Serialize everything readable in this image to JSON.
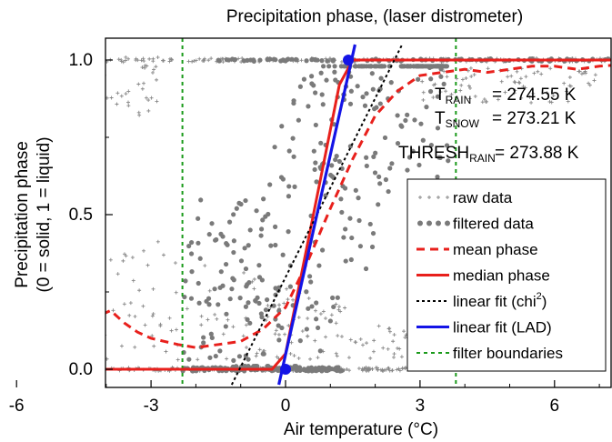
{
  "chart_data": {
    "type": "scatter",
    "title": "Precipitation phase, (laser distrometer)",
    "xlabel": "Air temperature (°C)",
    "ylabel_line1": "Precipitation phase",
    "ylabel_line2": "(0 = solid, 1 = liquid)",
    "xlim": [
      -8,
      14
    ],
    "ylim": [
      -0.02,
      1.05
    ],
    "x_ticks": [
      -6,
      -3,
      0,
      3,
      6
    ],
    "x_tick_labels": [
      "-6",
      "-3",
      "0",
      "3",
      "6"
    ],
    "y_ticks": [
      0.0,
      0.5,
      1.0
    ],
    "y_tick_labels": [
      "0.0",
      "0.5",
      "1.0"
    ],
    "annotations": {
      "t_rain": {
        "main": "T",
        "sub": "RAIN",
        "value": "= 274.55 K"
      },
      "t_snow": {
        "main": "T",
        "sub": "SNOW",
        "value": "= 273.21 K"
      },
      "thresh": {
        "main": "THRESH",
        "sub": "RAIN",
        "value": "= 273.88 K"
      }
    },
    "legend": {
      "placement": "lower-right",
      "entries": [
        {
          "key": "raw",
          "label": "raw data",
          "sup": ""
        },
        {
          "key": "filtered",
          "label": "filtered data",
          "sup": ""
        },
        {
          "key": "mean",
          "label": "mean phase",
          "sup": ""
        },
        {
          "key": "median",
          "label": "median phase",
          "sup": ""
        },
        {
          "key": "chi2",
          "label": "linear fit (chi",
          "sup": "2",
          "suffix": ")"
        },
        {
          "key": "lad",
          "label": "linear fit (LAD)",
          "sup": ""
        },
        {
          "key": "bounds",
          "label": "filter boundaries",
          "sup": ""
        }
      ]
    },
    "filter_boundaries": [
      -2.3,
      3.8
    ],
    "lad_fit": {
      "x": [
        -0.15,
        1.55
      ],
      "y": [
        -0.05,
        1.05
      ]
    },
    "chi2_fit": {
      "x": [
        -1.2,
        2.6
      ],
      "y": [
        -0.05,
        1.05
      ]
    },
    "lad_markers": [
      {
        "x": 0.0,
        "y": 0.0
      },
      {
        "x": 1.4,
        "y": 1.0
      }
    ],
    "mean_phase": {
      "x": [
        -8,
        -7.0,
        -6.5,
        -6.0,
        -5.5,
        -5.0,
        -4.6,
        -4.2,
        -3.9,
        -3.6,
        -3.3,
        -3.0,
        -2.7,
        -2.4,
        -2.0,
        -1.5,
        -1.0,
        -0.5,
        0.0,
        0.5,
        1.0,
        1.5,
        2.0,
        2.5,
        3.0,
        3.5,
        4.0,
        4.5,
        5.0,
        5.5,
        6.0,
        6.5,
        7.0,
        8.0,
        10.0,
        12.0,
        14.0
      ],
      "y": [
        0.0,
        0.0,
        0.0,
        0.02,
        0.04,
        0.07,
        0.12,
        0.17,
        0.19,
        0.15,
        0.12,
        0.1,
        0.09,
        0.08,
        0.07,
        0.08,
        0.09,
        0.13,
        0.2,
        0.35,
        0.52,
        0.68,
        0.82,
        0.9,
        0.95,
        0.96,
        0.97,
        0.96,
        0.97,
        0.98,
        0.98,
        0.97,
        0.98,
        0.99,
        1.0,
        1.0,
        1.0
      ]
    },
    "median_phase": {
      "x": [
        -8,
        -0.3,
        0.0,
        1.2,
        1.5,
        14.0
      ],
      "y": [
        0.0,
        0.0,
        0.05,
        0.92,
        1.0,
        1.0
      ]
    }
  }
}
